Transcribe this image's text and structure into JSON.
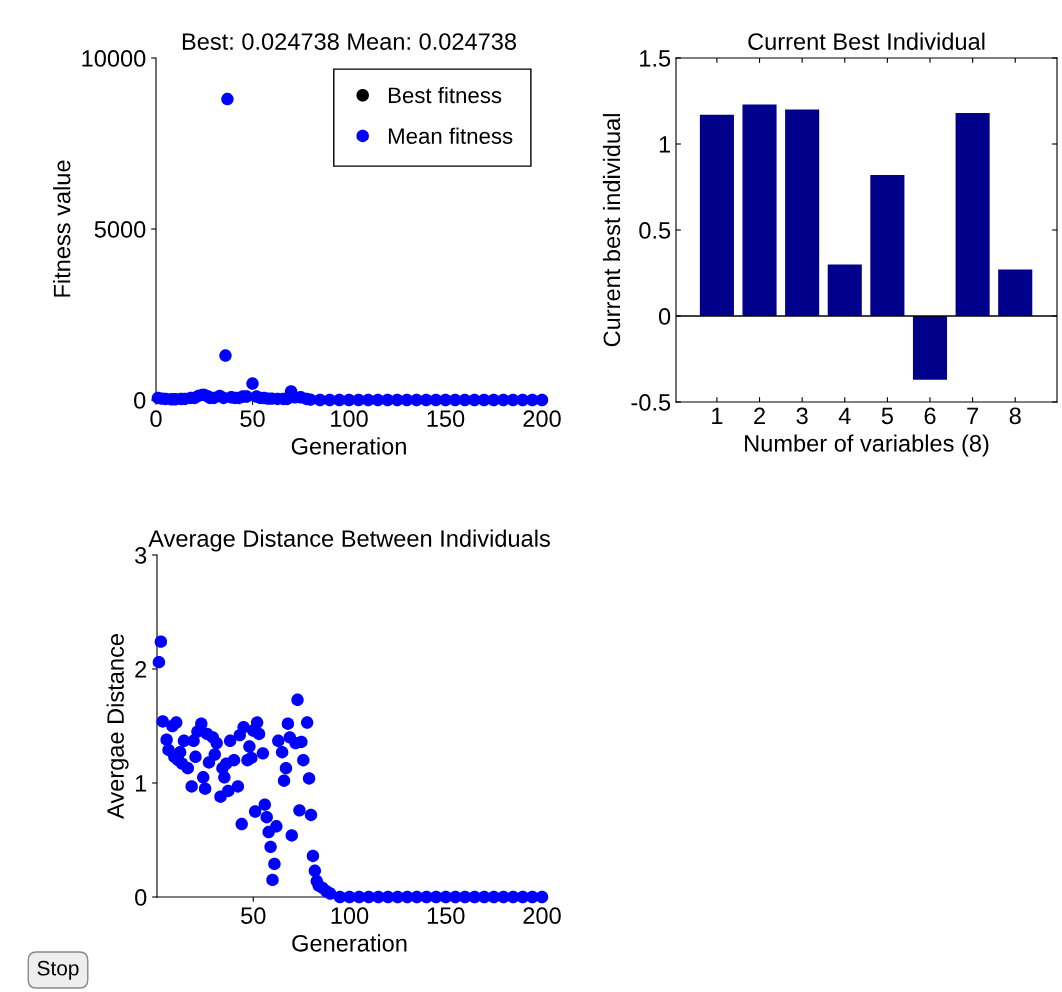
{
  "chart_data": [
    {
      "type": "scatter",
      "title": "Best: 0.024738 Mean: 0.024738",
      "xlabel": "Generation",
      "ylabel": "Fitness value",
      "xlim": [
        0,
        200
      ],
      "xticks": [
        0,
        50,
        100,
        150,
        200
      ],
      "ylim": [
        0,
        10000
      ],
      "yticks": [
        0,
        5000,
        10000
      ],
      "legend": "top right",
      "marker": "circle",
      "grid": false,
      "series": [
        {
          "name": "Best fitness",
          "color": "#000000"
        },
        {
          "name": "Mean fitness",
          "color": "#0000ff",
          "x": [
            1,
            3,
            5,
            8,
            10,
            13,
            15,
            18,
            20,
            22,
            24,
            25,
            27,
            28,
            30,
            33,
            35,
            36,
            37,
            39,
            41,
            43,
            45,
            47,
            50,
            52,
            54,
            56,
            58,
            60,
            63,
            66,
            68,
            70,
            72,
            75,
            78,
            80,
            85,
            90,
            95,
            100,
            105,
            110,
            115,
            120,
            125,
            130,
            135,
            140,
            145,
            150,
            155,
            160,
            165,
            170,
            175,
            180,
            185,
            190,
            195,
            200
          ],
          "values": [
            60,
            40,
            30,
            20,
            20,
            30,
            30,
            60,
            60,
            120,
            150,
            150,
            100,
            60,
            60,
            120,
            60,
            1300,
            8800,
            80,
            60,
            60,
            100,
            100,
            480,
            100,
            60,
            60,
            40,
            40,
            30,
            30,
            30,
            250,
            80,
            80,
            30,
            10,
            0,
            0,
            0,
            0,
            0,
            0,
            0,
            0,
            0,
            0,
            0,
            0,
            0,
            0,
            0,
            0,
            0,
            0,
            0,
            0,
            0,
            0,
            0,
            0
          ]
        }
      ]
    },
    {
      "type": "bar",
      "title": "Current Best Individual",
      "xlabel": "Number of variables (8)",
      "ylabel": "Current best individual",
      "categories": [
        "1",
        "2",
        "3",
        "4",
        "5",
        "6",
        "7",
        "8"
      ],
      "values": [
        1.17,
        1.23,
        1.2,
        0.3,
        0.82,
        -0.37,
        1.18,
        0.27
      ],
      "color": "#00008b",
      "ylim": [
        -0.5,
        1.5
      ],
      "yticks": [
        -0.5,
        0,
        0.5,
        1,
        1.5
      ],
      "grid": false,
      "ref_lines": [
        {
          "axis": "y",
          "value": 0,
          "color": "#000000"
        }
      ]
    },
    {
      "type": "scatter",
      "title": "Average Distance Between Individuals",
      "xlabel": "Generation",
      "ylabel": "Avergae Distance",
      "xlim": [
        0,
        200
      ],
      "xticks": [
        50,
        100,
        150,
        200
      ],
      "ylim": [
        0,
        3
      ],
      "yticks": [
        0,
        1,
        2,
        3
      ],
      "marker": "circle",
      "grid": false,
      "annotations": [
        "Stop"
      ],
      "series": [
        {
          "color": "#0000ff",
          "x": [
            1,
            2,
            3,
            5,
            6,
            8,
            9,
            10,
            11,
            12,
            13,
            14,
            16,
            18,
            19,
            20,
            21,
            23,
            24,
            25,
            26,
            27,
            29,
            30,
            31,
            33,
            34,
            35,
            36,
            37,
            38,
            40,
            42,
            43,
            44,
            45,
            47,
            48,
            49,
            50,
            51,
            52,
            53,
            55,
            56,
            57,
            58,
            59,
            60,
            61,
            62,
            63,
            65,
            66,
            67,
            68,
            69,
            70,
            72,
            73,
            74,
            75,
            76,
            78,
            79,
            80,
            81,
            82,
            83,
            84,
            86,
            88,
            90,
            95,
            100,
            105,
            110,
            115,
            120,
            125,
            130,
            135,
            140,
            145,
            150,
            155,
            160,
            165,
            170,
            175,
            180,
            185,
            190,
            195,
            200
          ],
          "values": [
            2.06,
            2.24,
            1.54,
            1.38,
            1.29,
            1.5,
            1.23,
            1.53,
            1.2,
            1.27,
            1.17,
            1.37,
            1.13,
            0.97,
            1.37,
            1.23,
            1.45,
            1.52,
            1.05,
            0.95,
            1.43,
            1.18,
            1.4,
            1.25,
            1.35,
            0.88,
            1.13,
            1.05,
            1.17,
            0.93,
            1.37,
            1.2,
            0.97,
            1.42,
            0.64,
            1.49,
            1.2,
            1.32,
            1.22,
            1.46,
            0.75,
            1.53,
            1.43,
            1.26,
            0.81,
            0.7,
            0.57,
            0.44,
            0.15,
            0.29,
            0.62,
            1.37,
            1.27,
            1.02,
            1.13,
            1.52,
            1.4,
            0.54,
            1.35,
            1.73,
            0.76,
            1.36,
            1.2,
            1.53,
            1.04,
            0.72,
            0.36,
            0.23,
            0.14,
            0.1,
            0.08,
            0.05,
            0.03,
            0,
            0,
            0,
            0,
            0,
            0,
            0,
            0,
            0,
            0,
            0,
            0,
            0,
            0,
            0,
            0,
            0,
            0,
            0,
            0,
            0,
            0
          ]
        }
      ]
    }
  ]
}
